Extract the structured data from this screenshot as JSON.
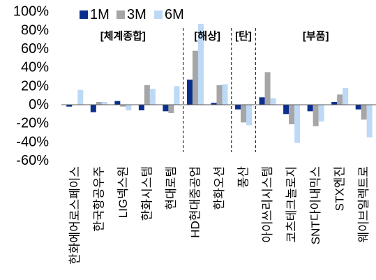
{
  "chart_data": {
    "type": "bar",
    "categories": [
      "한화에어로스페이스",
      "한국항공우주",
      "LIG넥스원",
      "한화시스템",
      "현대로템",
      "HD현대중공업",
      "한화오션",
      "풍산",
      "아이쓰리시스템",
      "코츠테크놀로지",
      "SNT다이내믹스",
      "STX엔진",
      "웨이브일렉트로"
    ],
    "series": [
      {
        "name": "1M",
        "color": "#0b2f8f",
        "values": [
          -2,
          -8,
          4,
          -6,
          -7,
          27,
          2,
          -5,
          8,
          -10,
          -7,
          3,
          -5
        ]
      },
      {
        "name": "3M",
        "color": "#a6a6a6",
        "values": [
          0,
          3,
          -2,
          21,
          -9,
          58,
          21,
          -19,
          35,
          -21,
          -23,
          11,
          -16
        ]
      },
      {
        "name": "6M",
        "color": "#bdd9f5",
        "values": [
          16,
          3,
          -6,
          17,
          20,
          87,
          22,
          -22,
          7,
          -41,
          -18,
          18,
          -35
        ]
      }
    ],
    "ylim": [
      -60,
      100
    ],
    "yticks": [
      100,
      80,
      60,
      40,
      20,
      0,
      -20,
      -40,
      -60
    ],
    "ytick_labels": [
      "100%",
      "80%",
      "60%",
      "40%",
      "20%",
      "0%",
      "-20%",
      "-40%",
      "-60%"
    ],
    "group_labels": [
      "[체계종합]",
      "[해상]",
      "[탄]",
      "[부품]"
    ],
    "legend": "top-left",
    "grid": false
  }
}
